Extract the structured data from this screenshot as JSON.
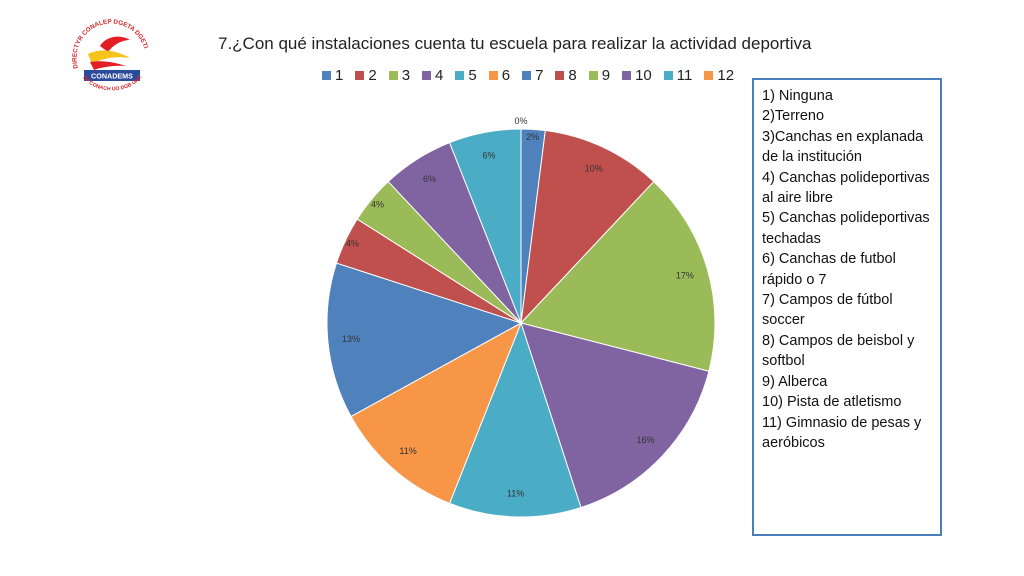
{
  "logo": {
    "text_top": "DIRECTYR CONALEP DGETA DGETI IPN",
    "text_mid": "CONADEMS",
    "text_bottom": "SP CONACH UO DGB UNAM Tec"
  },
  "chart_data": {
    "type": "pie",
    "title": "7.¿Con qué instalaciones cuenta tu escuela para realizar la actividad deportiva",
    "categories": [
      "1",
      "2",
      "3",
      "4",
      "5",
      "6",
      "7",
      "8",
      "9",
      "10",
      "11",
      "12"
    ],
    "values": [
      0,
      2,
      10,
      17,
      16,
      11,
      11,
      13,
      4,
      4,
      6,
      6
    ],
    "slice_labels": [
      "0%",
      "2%",
      "10%",
      "17%",
      "16%",
      "11%",
      "11%",
      "13%",
      "4%",
      "4%",
      "6%",
      "6%"
    ],
    "colors": [
      "#4f81bd",
      "#c0504d",
      "#9bbb59",
      "#8064a2",
      "#4bacc6",
      "#f79646",
      "#4f81bd",
      "#c0504d",
      "#9bbb59",
      "#8064a2",
      "#4bacc6",
      "#f79646"
    ],
    "slice_colors": [
      "#4f81bd",
      "#4f81bd",
      "#c0504d",
      "#9bbb59",
      "#8064a2",
      "#4bacc6",
      "#f79646",
      "#4f81bd",
      "#c0504d",
      "#9bbb59",
      "#8064a2",
      "#4bacc6"
    ],
    "legend_placement": "top"
  },
  "info_box": {
    "items": [
      "1) Ninguna",
      "2)Terreno",
      "3)Canchas  en explanada de la institución",
      "4) Canchas polideportivas al aire libre",
      "5) Canchas polideportivas techadas",
      "6) Canchas de futbol rápido o 7",
      "7) Campos de fútbol soccer",
      "8) Campos de beisbol y softbol",
      "9) Alberca",
      "10) Pista de atletismo",
      "11) Gimnasio de pesas y aeróbicos"
    ]
  }
}
